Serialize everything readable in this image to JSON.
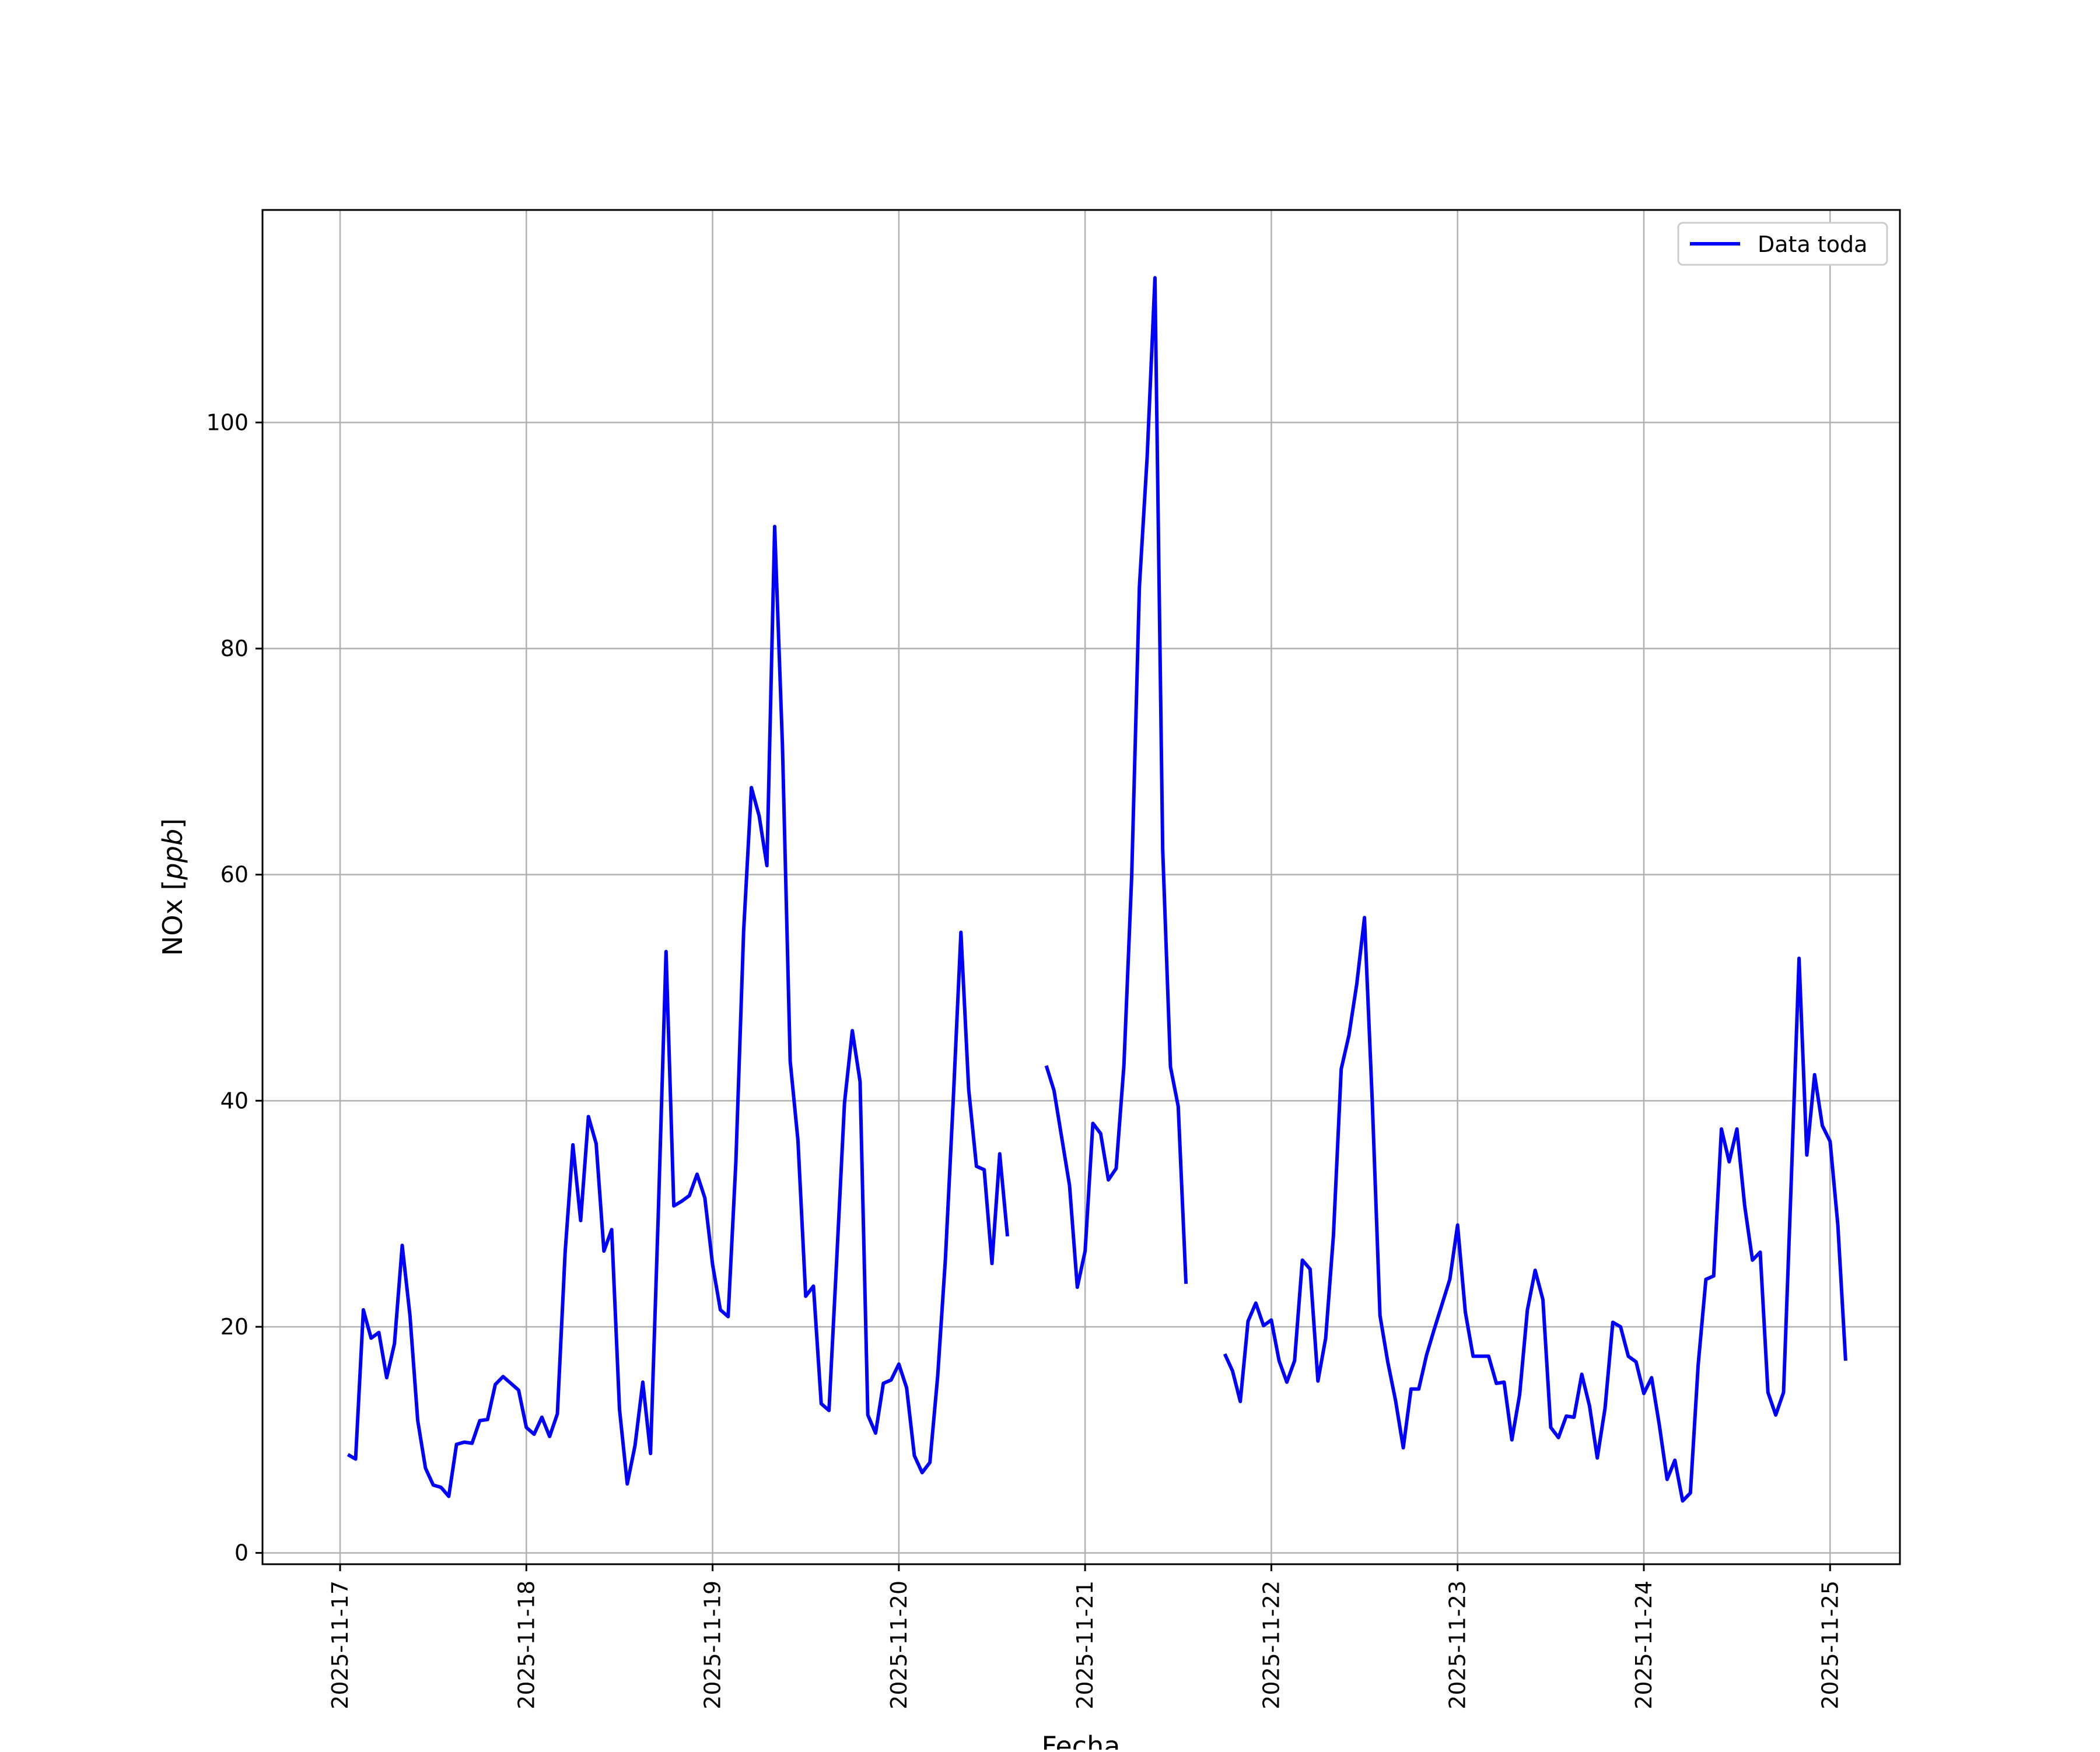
{
  "chart_data": {
    "type": "line",
    "title": "",
    "xlabel": "Fecha",
    "ylabel_main": "NOx [",
    "ylabel_italic": "ppb",
    "ylabel_end": "]",
    "ylim": [
      -1,
      118.8
    ],
    "xlim": [
      "2025-11-16 14:00",
      "2025-11-25 09:00"
    ],
    "grid": true,
    "legend_position": "top-right",
    "yticks": [
      0,
      20,
      40,
      60,
      80,
      100
    ],
    "xticks": [
      "2025-11-17",
      "2025-11-18",
      "2025-11-19",
      "2025-11-20",
      "2025-11-21",
      "2025-11-22",
      "2025-11-23",
      "2025-11-24",
      "2025-11-25"
    ],
    "x_start": "2025-11-17 01:00",
    "x_step_hours": 1,
    "colors": {
      "line": "#0000ff",
      "grid": "#b0b0b0",
      "axes": "#000000",
      "legend_border": "#cccccc"
    },
    "series": [
      {
        "name": "Data toda",
        "values": [
          8.7,
          8.3,
          21.5,
          19.0,
          19.5,
          15.5,
          18.5,
          27.2,
          21.0,
          11.7,
          7.5,
          6.0,
          5.8,
          5.0,
          9.6,
          9.8,
          9.7,
          11.7,
          11.8,
          14.9,
          15.6,
          15.0,
          14.4,
          11.1,
          10.5,
          12.0,
          10.3,
          12.3,
          26.6,
          36.1,
          29.4,
          38.6,
          36.2,
          26.7,
          28.6,
          12.7,
          6.1,
          9.5,
          15.1,
          8.8,
          30.0,
          53.2,
          30.7,
          31.1,
          31.6,
          33.5,
          31.4,
          25.5,
          21.5,
          20.9,
          34.6,
          55.0,
          67.7,
          65.2,
          60.8,
          90.8,
          71.5,
          43.5,
          36.5,
          22.7,
          23.6,
          13.2,
          12.6,
          26.0,
          39.8,
          46.2,
          41.7,
          12.2,
          10.6,
          15.0,
          15.3,
          16.7,
          14.6,
          8.6,
          7.1,
          8.0,
          15.6,
          26.0,
          39.9,
          54.9,
          41.0,
          34.2,
          33.9,
          25.6,
          35.3,
          28.0,
          null,
          null,
          null,
          null,
          43.1,
          40.9,
          36.7,
          32.5,
          23.5,
          26.7,
          38.0,
          37.1,
          33.0,
          34.0,
          43.1,
          59.8,
          85.5,
          97.0,
          112.8,
          62.2,
          43.0,
          39.5,
          23.8,
          null,
          null,
          null,
          null,
          17.6,
          16.1,
          13.4,
          20.5,
          22.1,
          20.1,
          20.6,
          17.0,
          15.1,
          17.0,
          25.9,
          25.1,
          15.2,
          19.0,
          28.1,
          42.8,
          45.8,
          50.3,
          56.2,
          40.0,
          21.0,
          16.9,
          13.5,
          9.3,
          14.5,
          14.5,
          17.5,
          19.8,
          22.0,
          24.2,
          29.0,
          21.3,
          17.4,
          17.4,
          17.4,
          15.0,
          15.1,
          10.0,
          14.0,
          21.5,
          25.0,
          22.4,
          11.1,
          10.2,
          12.1,
          12.0,
          15.8,
          13.0,
          8.4,
          12.8,
          20.4,
          20.0,
          17.4,
          16.9,
          14.1,
          15.5,
          11.3,
          6.5,
          8.2,
          4.6,
          5.3,
          16.6,
          24.2,
          24.5,
          37.5,
          34.6,
          37.5,
          30.7,
          25.9,
          26.6,
          14.2,
          12.2,
          14.2,
          33.0,
          52.6,
          35.2,
          42.3,
          37.8,
          36.4,
          29.0,
          17.0
        ]
      }
    ]
  }
}
